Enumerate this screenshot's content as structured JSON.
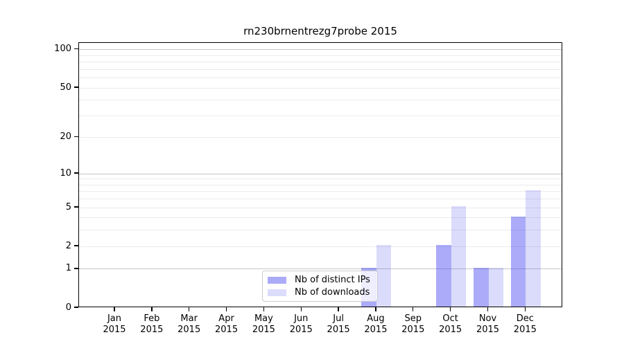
{
  "title": "rn230brnentrezg7probe 2015",
  "chart_data": {
    "type": "bar",
    "title": "rn230brnentrezg7probe 2015",
    "categories": [
      "Jan",
      "Feb",
      "Mar",
      "Apr",
      "May",
      "Jun",
      "Jul",
      "Aug",
      "Sep",
      "Oct",
      "Nov",
      "Dec"
    ],
    "year": "2015",
    "series": [
      {
        "name": "Nb of distinct IPs",
        "values": [
          0,
          0,
          0,
          0,
          0,
          0,
          0,
          1,
          0,
          2,
          1,
          4
        ],
        "fill": "rgba(55,55,240,0.42)",
        "swatch": "#ababf7"
      },
      {
        "name": "Nb of downloads",
        "values": [
          0,
          0,
          0,
          0,
          0,
          0,
          0,
          2,
          0,
          5,
          1,
          7
        ],
        "fill": "rgba(55,55,240,0.18)",
        "swatch": "#dcdcfb"
      }
    ],
    "xlabel": "",
    "ylabel": "",
    "yscale": "log1p",
    "ylim": [
      0,
      113
    ],
    "ytick_values": [
      0,
      1,
      2,
      5,
      10,
      20,
      50,
      100
    ],
    "ytick_labels": [
      "0",
      "1",
      "2",
      "5",
      "10",
      "20",
      "50",
      "100"
    ],
    "grid_values": [
      1,
      2,
      3,
      4,
      5,
      6,
      7,
      8,
      9,
      10,
      20,
      30,
      40,
      50,
      60,
      70,
      80,
      90,
      100
    ],
    "grid_major_values": [
      1,
      10,
      100
    ],
    "grid_minor_color": "#ebebeb",
    "grid_major_color": "#c6c6c6",
    "legend_position": "lower center",
    "legend": [
      "Nb of distinct IPs",
      "Nb of downloads"
    ]
  }
}
